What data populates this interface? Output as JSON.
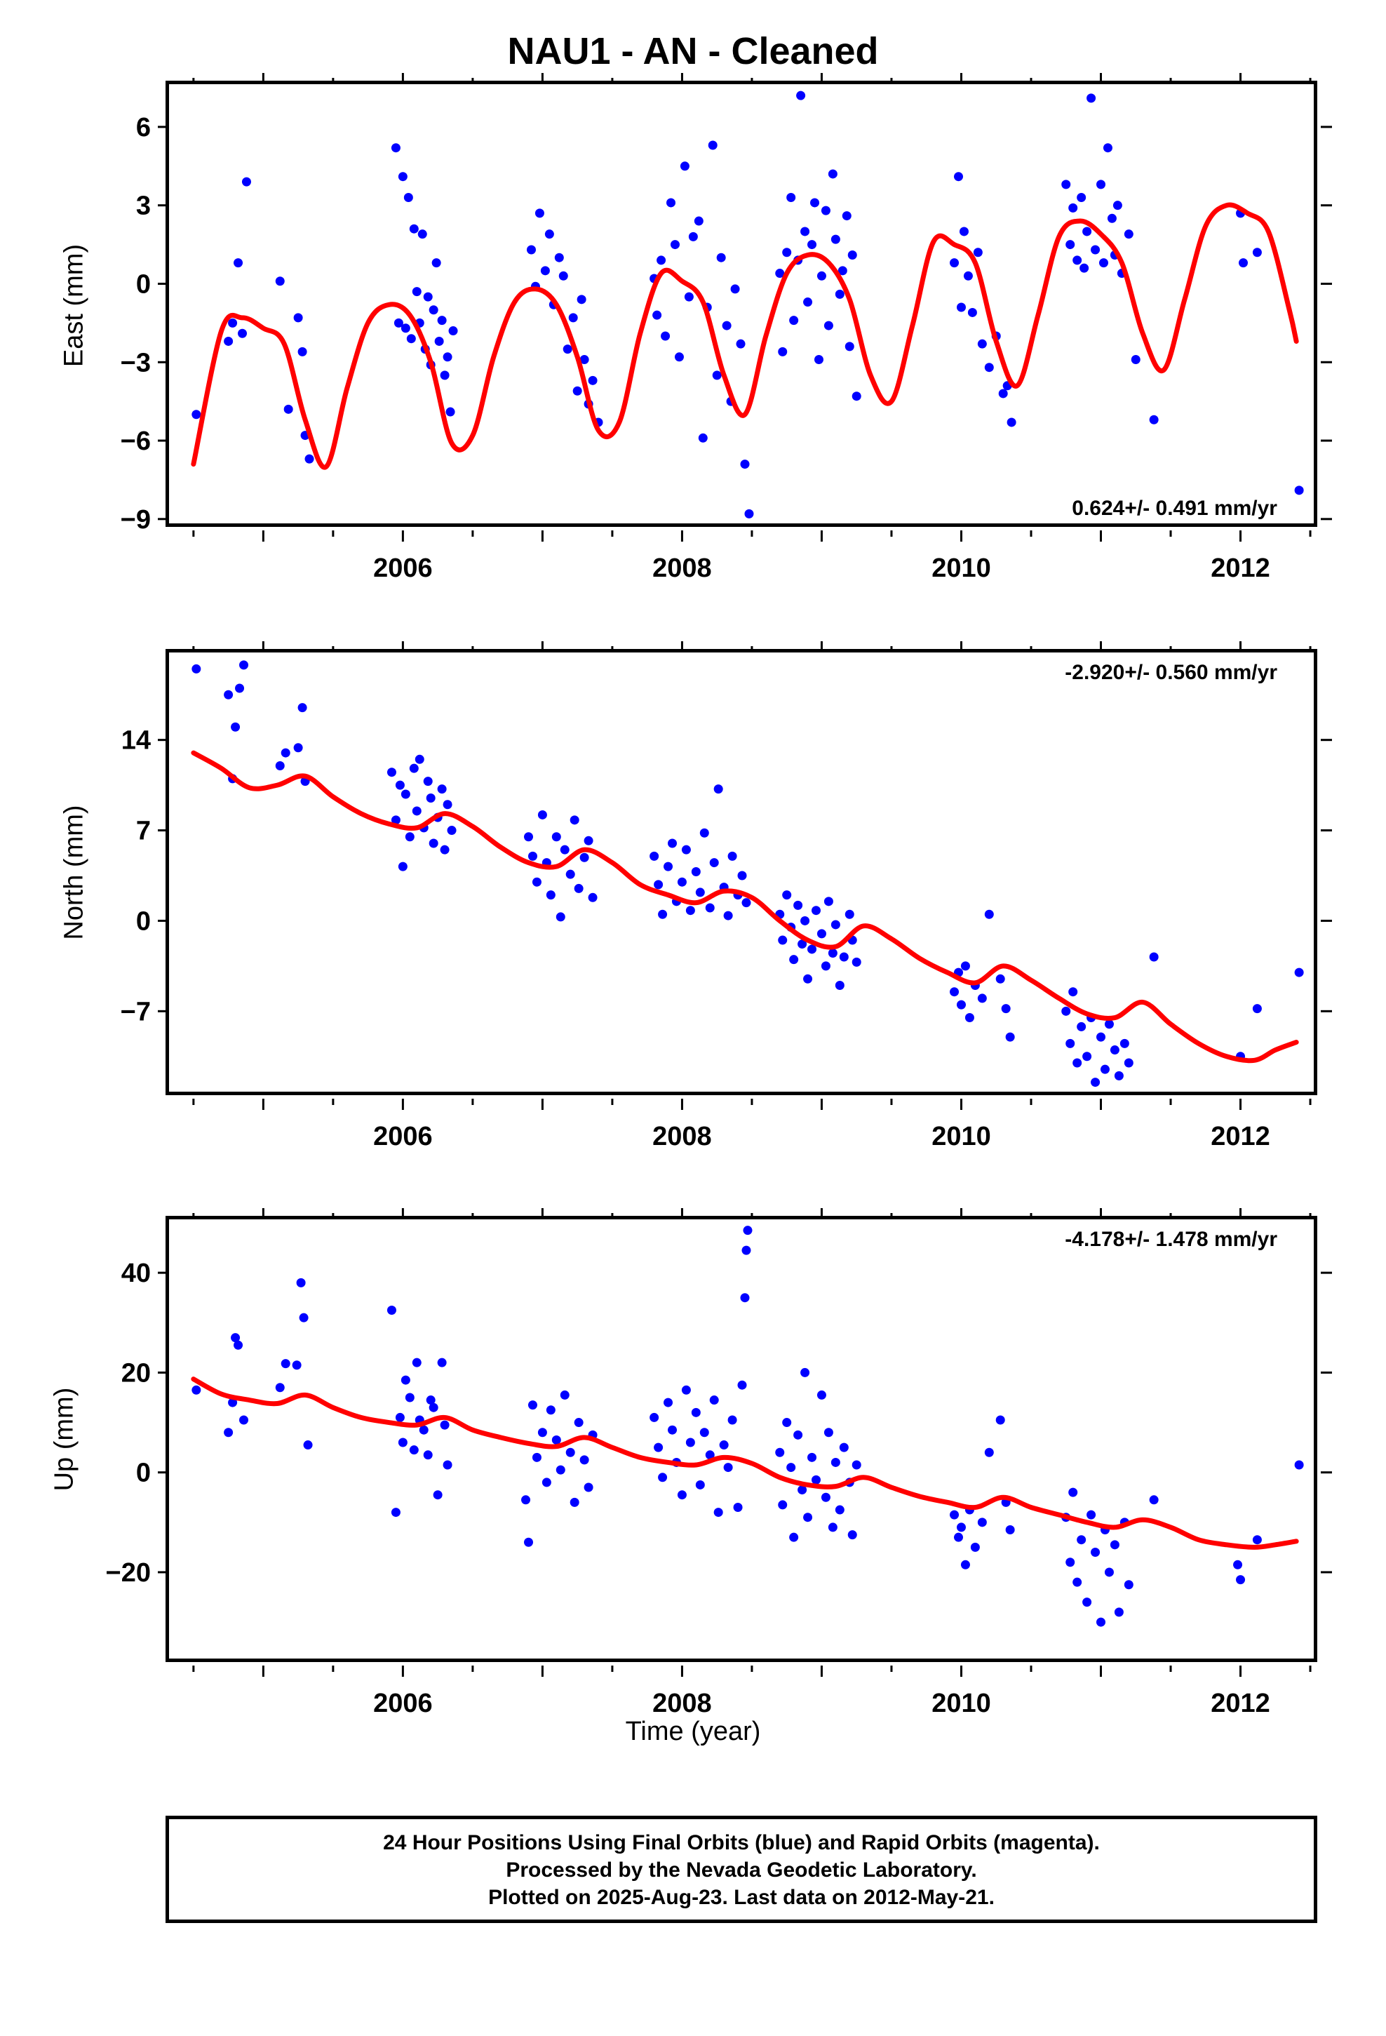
{
  "title": "NAU1  - AN - Cleaned",
  "x_axis": {
    "label": "Time (year)",
    "ticks": [
      "2006",
      "2008",
      "2010",
      "2012"
    ]
  },
  "footer": {
    "line1": "24 Hour Positions Using Final Orbits (blue) and Rapid Orbits (magenta).",
    "line2": "Processed by the Nevada Geodetic Laboratory.",
    "line3": "Plotted on 2025-Aug-23. Last data on 2012-May-21."
  },
  "colors": {
    "points": "#0000ff",
    "model": "#ff0000",
    "axes": "#000000"
  },
  "chart_data": [
    {
      "type": "scatter",
      "ylabel": "East (mm)",
      "rate_label": "0.624+/- 0.491 mm/yr",
      "rate_position": "bottom-right",
      "xlim": [
        2004.35,
        2012.55
      ],
      "ylim": [
        -9.3,
        7.5
      ],
      "yticks": [
        6,
        3,
        0,
        -3,
        -6,
        -9
      ],
      "ytick_labels": [
        "6",
        "3",
        "0",
        "−3",
        "−6",
        "−9"
      ],
      "model": {
        "color": "#ff0000",
        "x": [
          2004.5,
          2004.7,
          2004.85,
          2005.0,
          2005.15,
          2005.3,
          2005.45,
          2005.6,
          2005.75,
          2005.9,
          2006.05,
          2006.2,
          2006.35,
          2006.5,
          2006.65,
          2006.8,
          2006.95,
          2007.1,
          2007.25,
          2007.4,
          2007.55,
          2007.7,
          2007.85,
          2008.0,
          2008.15,
          2008.3,
          2008.45,
          2008.6,
          2008.75,
          2008.9,
          2009.05,
          2009.2,
          2009.35,
          2009.5,
          2009.65,
          2009.8,
          2009.95,
          2010.1,
          2010.25,
          2010.4,
          2010.55,
          2010.7,
          2010.85,
          2011.0,
          2011.15,
          2011.3,
          2011.45,
          2011.6,
          2011.75,
          2011.9,
          2012.05,
          2012.2,
          2012.35,
          2012.4
        ],
        "y": [
          -6.9,
          -1.8,
          -1.3,
          -1.7,
          -2.3,
          -5.2,
          -7.0,
          -4.0,
          -1.5,
          -0.8,
          -1.2,
          -3.0,
          -6.1,
          -5.8,
          -2.8,
          -0.7,
          -0.2,
          -0.8,
          -2.8,
          -5.6,
          -5.3,
          -1.9,
          0.4,
          0.1,
          -0.7,
          -3.5,
          -5.0,
          -2.0,
          0.4,
          1.1,
          0.8,
          -0.6,
          -3.5,
          -4.5,
          -1.6,
          1.6,
          1.5,
          0.8,
          -2.2,
          -3.9,
          -1.2,
          1.8,
          2.4,
          1.9,
          0.8,
          -1.9,
          -3.3,
          -0.6,
          2.2,
          3.0,
          2.7,
          2.0,
          -1.0,
          -2.2
        ]
      },
      "points": {
        "color": "#0000ff",
        "x": [
          2004.52,
          2004.75,
          2004.78,
          2004.82,
          2004.85,
          2004.88,
          2005.12,
          2005.18,
          2005.25,
          2005.28,
          2005.3,
          2005.33,
          2005.95,
          2005.97,
          2006.0,
          2006.02,
          2006.04,
          2006.06,
          2006.08,
          2006.1,
          2006.12,
          2006.14,
          2006.16,
          2006.18,
          2006.2,
          2006.22,
          2006.24,
          2006.26,
          2006.28,
          2006.3,
          2006.32,
          2006.34,
          2006.36,
          2006.92,
          2006.95,
          2006.98,
          2007.02,
          2007.05,
          2007.08,
          2007.12,
          2007.15,
          2007.18,
          2007.22,
          2007.25,
          2007.28,
          2007.3,
          2007.33,
          2007.36,
          2007.4,
          2007.8,
          2007.82,
          2007.85,
          2007.88,
          2007.92,
          2007.95,
          2007.98,
          2008.02,
          2008.05,
          2008.08,
          2008.12,
          2008.15,
          2008.18,
          2008.22,
          2008.25,
          2008.28,
          2008.32,
          2008.35,
          2008.38,
          2008.42,
          2008.45,
          2008.48,
          2008.7,
          2008.72,
          2008.75,
          2008.78,
          2008.8,
          2008.83,
          2008.85,
          2008.88,
          2008.9,
          2008.93,
          2008.95,
          2008.98,
          2009.0,
          2009.03,
          2009.05,
          2009.08,
          2009.1,
          2009.13,
          2009.15,
          2009.18,
          2009.2,
          2009.22,
          2009.25,
          2009.95,
          2009.98,
          2010.0,
          2010.02,
          2010.05,
          2010.08,
          2010.12,
          2010.15,
          2010.2,
          2010.25,
          2010.3,
          2010.33,
          2010.36,
          2010.75,
          2010.78,
          2010.8,
          2010.83,
          2010.86,
          2010.88,
          2010.9,
          2010.93,
          2010.96,
          2011.0,
          2011.02,
          2011.05,
          2011.08,
          2011.1,
          2011.12,
          2011.15,
          2011.2,
          2011.25,
          2011.38,
          2012.0,
          2012.02,
          2012.12,
          2012.42
        ],
        "y": [
          -5.0,
          -2.2,
          -1.5,
          0.8,
          -1.9,
          3.9,
          0.1,
          -4.8,
          -1.3,
          -2.6,
          -5.8,
          -6.7,
          5.2,
          -1.5,
          4.1,
          -1.7,
          3.3,
          -2.1,
          2.1,
          -0.3,
          -1.5,
          1.9,
          -2.5,
          -0.5,
          -3.1,
          -1.0,
          0.8,
          -2.2,
          -1.4,
          -3.5,
          -2.8,
          -4.9,
          -1.8,
          1.3,
          -0.1,
          2.7,
          0.5,
          1.9,
          -0.8,
          1.0,
          0.3,
          -2.5,
          -1.3,
          -4.1,
          -0.6,
          -2.9,
          -4.6,
          -3.7,
          -5.3,
          0.2,
          -1.2,
          0.9,
          -2.0,
          3.1,
          1.5,
          -2.8,
          4.5,
          -0.5,
          1.8,
          2.4,
          -5.9,
          -0.9,
          5.3,
          -3.5,
          1.0,
          -1.6,
          -4.5,
          -0.2,
          -2.3,
          -6.9,
          -8.8,
          0.4,
          -2.6,
          1.2,
          3.3,
          -1.4,
          0.9,
          7.2,
          2.0,
          -0.7,
          1.5,
          3.1,
          -2.9,
          0.3,
          2.8,
          -1.6,
          4.2,
          1.7,
          -0.4,
          0.5,
          2.6,
          -2.4,
          1.1,
          -4.3,
          0.8,
          4.1,
          -0.9,
          2.0,
          0.3,
          -1.1,
          1.2,
          -2.3,
          -3.2,
          -2.0,
          -4.2,
          -3.9,
          -5.3,
          3.8,
          1.5,
          2.9,
          0.9,
          3.3,
          0.6,
          2.0,
          7.1,
          1.3,
          3.8,
          0.8,
          5.2,
          2.5,
          1.1,
          3.0,
          0.4,
          1.9,
          -2.9,
          -5.2,
          2.7,
          0.8,
          1.2,
          -7.9
        ]
      }
    },
    {
      "type": "scatter",
      "ylabel": "North (mm)",
      "rate_label": "-2.920+/- 0.560 mm/yr",
      "rate_position": "top-right",
      "xlim": [
        2004.35,
        2012.55
      ],
      "ylim": [
        -13.5,
        20.5
      ],
      "yticks": [
        14,
        7,
        0,
        -7
      ],
      "ytick_labels": [
        "14",
        "7",
        "0",
        "−7"
      ],
      "model": {
        "color": "#ff0000",
        "x": [
          2004.5,
          2004.7,
          2004.9,
          2005.1,
          2005.3,
          2005.5,
          2005.7,
          2005.9,
          2006.1,
          2006.3,
          2006.5,
          2006.7,
          2006.9,
          2007.1,
          2007.3,
          2007.5,
          2007.7,
          2007.9,
          2008.1,
          2008.3,
          2008.5,
          2008.7,
          2008.9,
          2009.1,
          2009.3,
          2009.5,
          2009.7,
          2009.9,
          2010.1,
          2010.3,
          2010.5,
          2010.7,
          2010.9,
          2011.1,
          2011.3,
          2011.5,
          2011.7,
          2011.9,
          2012.1,
          2012.25,
          2012.4
        ],
        "y": [
          13.0,
          11.8,
          10.3,
          10.5,
          11.2,
          9.6,
          8.3,
          7.5,
          7.2,
          8.3,
          7.3,
          5.7,
          4.5,
          4.2,
          5.5,
          4.5,
          2.8,
          2.0,
          1.4,
          2.3,
          1.8,
          0.0,
          -1.5,
          -2.0,
          -0.4,
          -1.4,
          -2.9,
          -4.0,
          -4.8,
          -3.5,
          -4.6,
          -6.0,
          -7.2,
          -7.5,
          -6.3,
          -8.0,
          -9.5,
          -10.5,
          -10.8,
          -10.0,
          -9.4
        ]
      },
      "points": {
        "color": "#0000ff",
        "x": [
          2004.52,
          2004.75,
          2004.78,
          2004.8,
          2004.83,
          2004.86,
          2005.12,
          2005.16,
          2005.25,
          2005.28,
          2005.3,
          2005.92,
          2005.95,
          2005.98,
          2006.0,
          2006.02,
          2006.05,
          2006.08,
          2006.1,
          2006.12,
          2006.15,
          2006.18,
          2006.2,
          2006.22,
          2006.25,
          2006.28,
          2006.3,
          2006.32,
          2006.35,
          2006.9,
          2006.93,
          2006.96,
          2007.0,
          2007.03,
          2007.06,
          2007.1,
          2007.13,
          2007.16,
          2007.2,
          2007.23,
          2007.26,
          2007.3,
          2007.33,
          2007.36,
          2007.8,
          2007.83,
          2007.86,
          2007.9,
          2007.93,
          2007.96,
          2008.0,
          2008.03,
          2008.06,
          2008.1,
          2008.13,
          2008.16,
          2008.2,
          2008.23,
          2008.26,
          2008.3,
          2008.33,
          2008.36,
          2008.4,
          2008.43,
          2008.46,
          2008.7,
          2008.72,
          2008.75,
          2008.78,
          2008.8,
          2008.83,
          2008.86,
          2008.88,
          2008.9,
          2008.93,
          2008.96,
          2009.0,
          2009.03,
          2009.05,
          2009.08,
          2009.1,
          2009.13,
          2009.16,
          2009.2,
          2009.22,
          2009.25,
          2009.95,
          2009.98,
          2010.0,
          2010.03,
          2010.06,
          2010.1,
          2010.15,
          2010.2,
          2010.28,
          2010.32,
          2010.35,
          2010.75,
          2010.78,
          2010.8,
          2010.83,
          2010.86,
          2010.9,
          2010.93,
          2010.96,
          2011.0,
          2011.03,
          2011.06,
          2011.1,
          2011.13,
          2011.17,
          2011.2,
          2011.38,
          2012.0,
          2012.12,
          2012.42
        ],
        "y": [
          19.5,
          17.5,
          11.0,
          15.0,
          18.0,
          19.8,
          12.0,
          13.0,
          13.4,
          16.5,
          10.8,
          11.5,
          7.8,
          10.5,
          4.2,
          9.8,
          6.5,
          11.8,
          8.5,
          12.5,
          7.2,
          10.8,
          9.5,
          6.0,
          8.0,
          10.2,
          5.5,
          9.0,
          7.0,
          6.5,
          5.0,
          3.0,
          8.2,
          4.5,
          2.0,
          6.5,
          0.3,
          5.5,
          3.6,
          7.8,
          2.5,
          4.9,
          6.2,
          1.8,
          5.0,
          2.8,
          0.5,
          4.2,
          6.0,
          1.5,
          3.0,
          5.5,
          0.8,
          3.8,
          2.2,
          6.8,
          1.0,
          4.5,
          10.2,
          2.6,
          0.4,
          5.0,
          2.0,
          3.5,
          1.4,
          0.5,
          -1.5,
          2.0,
          -0.5,
          -3.0,
          1.2,
          -1.8,
          0.0,
          -4.5,
          -2.2,
          0.8,
          -1.0,
          -3.5,
          1.5,
          -2.5,
          -0.3,
          -5.0,
          -2.8,
          0.5,
          -1.5,
          -3.2,
          -5.5,
          -4.0,
          -6.5,
          -3.5,
          -7.5,
          -5.0,
          -6.0,
          0.5,
          -4.5,
          -6.8,
          -9.0,
          -7.0,
          -9.5,
          -5.5,
          -11.0,
          -8.2,
          -10.5,
          -7.5,
          -12.5,
          -9.0,
          -11.5,
          -8.0,
          -10.0,
          -12.0,
          -9.5,
          -11.0,
          -2.8,
          -10.5,
          -6.8,
          -4.0
        ]
      }
    },
    {
      "type": "scatter",
      "ylabel": "Up (mm)",
      "rate_label": "-4.178+/- 1.478 mm/yr",
      "rate_position": "top-right",
      "xlim": [
        2004.35,
        2012.55
      ],
      "ylim": [
        -38,
        50
      ],
      "yticks": [
        40,
        20,
        0,
        -20
      ],
      "ytick_labels": [
        "40",
        "20",
        "0",
        "−20"
      ],
      "model": {
        "color": "#ff0000",
        "x": [
          2004.5,
          2004.7,
          2004.9,
          2005.1,
          2005.3,
          2005.5,
          2005.7,
          2005.9,
          2006.1,
          2006.3,
          2006.5,
          2006.7,
          2006.9,
          2007.1,
          2007.3,
          2007.5,
          2007.7,
          2007.9,
          2008.1,
          2008.3,
          2008.5,
          2008.7,
          2008.9,
          2009.1,
          2009.3,
          2009.5,
          2009.7,
          2009.9,
          2010.1,
          2010.3,
          2010.5,
          2010.7,
          2010.9,
          2011.1,
          2011.3,
          2011.5,
          2011.7,
          2011.9,
          2012.1,
          2012.25,
          2012.4
        ],
        "y": [
          18.7,
          15.7,
          14.5,
          13.8,
          15.5,
          13.0,
          11.0,
          10.0,
          9.5,
          11.0,
          8.5,
          7.0,
          5.8,
          5.2,
          7.0,
          5.0,
          3.0,
          2.0,
          1.5,
          3.0,
          1.8,
          -1.0,
          -2.5,
          -2.8,
          -1.0,
          -3.0,
          -4.8,
          -6.0,
          -7.0,
          -5.0,
          -7.0,
          -8.5,
          -10.0,
          -11.0,
          -9.5,
          -11.0,
          -13.5,
          -14.5,
          -15.0,
          -14.5,
          -13.8
        ]
      },
      "points": {
        "color": "#0000ff",
        "x": [
          2004.52,
          2004.75,
          2004.78,
          2004.8,
          2004.82,
          2004.86,
          2005.12,
          2005.16,
          2005.24,
          2005.27,
          2005.29,
          2005.32,
          2005.92,
          2005.95,
          2005.98,
          2006.0,
          2006.02,
          2006.05,
          2006.08,
          2006.1,
          2006.12,
          2006.15,
          2006.18,
          2006.2,
          2006.22,
          2006.25,
          2006.28,
          2006.3,
          2006.32,
          2006.88,
          2006.9,
          2006.93,
          2006.96,
          2007.0,
          2007.03,
          2007.06,
          2007.1,
          2007.13,
          2007.16,
          2007.2,
          2007.23,
          2007.26,
          2007.3,
          2007.33,
          2007.36,
          2007.8,
          2007.83,
          2007.86,
          2007.9,
          2007.93,
          2007.96,
          2008.0,
          2008.03,
          2008.06,
          2008.1,
          2008.13,
          2008.16,
          2008.2,
          2008.23,
          2008.26,
          2008.3,
          2008.33,
          2008.36,
          2008.4,
          2008.43,
          2008.45,
          2008.46,
          2008.47,
          2008.7,
          2008.72,
          2008.75,
          2008.78,
          2008.8,
          2008.83,
          2008.86,
          2008.88,
          2008.9,
          2008.93,
          2008.96,
          2009.0,
          2009.03,
          2009.05,
          2009.08,
          2009.1,
          2009.13,
          2009.16,
          2009.2,
          2009.22,
          2009.25,
          2009.95,
          2009.98,
          2010.0,
          2010.03,
          2010.06,
          2010.1,
          2010.15,
          2010.2,
          2010.28,
          2010.32,
          2010.35,
          2010.75,
          2010.78,
          2010.8,
          2010.83,
          2010.86,
          2010.9,
          2010.93,
          2010.96,
          2011.0,
          2011.03,
          2011.06,
          2011.1,
          2011.13,
          2011.17,
          2011.2,
          2011.38,
          2011.98,
          2012.0,
          2012.12,
          2012.42
        ],
        "y": [
          16.5,
          8.0,
          14.0,
          27.0,
          25.5,
          10.5,
          17.0,
          21.8,
          21.5,
          38.0,
          31.0,
          5.5,
          32.5,
          -8.0,
          11.0,
          6.0,
          18.5,
          15.0,
          4.5,
          22.0,
          10.5,
          8.5,
          3.5,
          14.5,
          13.0,
          -4.5,
          22.0,
          9.5,
          1.5,
          -5.5,
          -14.0,
          13.5,
          3.0,
          8.0,
          -2.0,
          12.5,
          6.5,
          0.5,
          15.5,
          4.0,
          -6.0,
          10.0,
          2.5,
          -3.0,
          7.5,
          11.0,
          5.0,
          -1.0,
          14.0,
          8.5,
          2.0,
          -4.5,
          16.5,
          6.0,
          12.0,
          -2.5,
          8.0,
          3.5,
          14.5,
          -8.0,
          5.5,
          1.0,
          10.5,
          -7.0,
          17.5,
          35.0,
          44.5,
          48.5,
          4.0,
          -6.5,
          10.0,
          1.0,
          -13.0,
          7.5,
          -3.5,
          20.0,
          -9.0,
          3.0,
          -1.5,
          15.5,
          -5.0,
          8.0,
          -11.0,
          2.0,
          -7.5,
          5.0,
          -2.0,
          -12.5,
          1.5,
          -8.5,
          -13.0,
          -11.0,
          -18.5,
          -7.5,
          -15.0,
          -10.0,
          4.0,
          10.5,
          -6.0,
          -11.5,
          -9.0,
          -18.0,
          -4.0,
          -22.0,
          -13.5,
          -26.0,
          -8.5,
          -16.0,
          -30.0,
          -11.5,
          -20.0,
          -14.5,
          -28.0,
          -10.0,
          -22.5,
          -5.5,
          -18.5,
          -21.5,
          -13.5,
          1.5
        ]
      }
    }
  ]
}
